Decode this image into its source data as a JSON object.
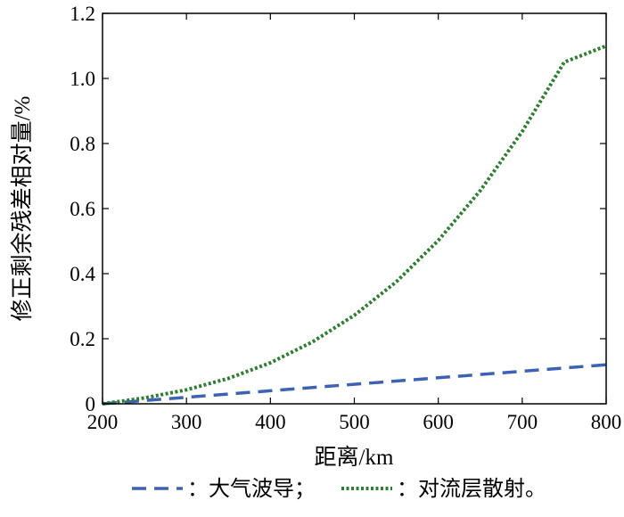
{
  "chart_data": {
    "type": "line",
    "xlabel": "距离/km",
    "ylabel": "修正剩余残差相对量/%",
    "xlim": [
      200,
      800
    ],
    "ylim": [
      0,
      1.2
    ],
    "xticks": [
      "200",
      "300",
      "400",
      "500",
      "600",
      "700",
      "800"
    ],
    "yticks": [
      "0",
      "0.2",
      "0.4",
      "0.6",
      "0.8",
      "1.0",
      "1.2"
    ],
    "grid": false,
    "legend_position": "bottom",
    "series": [
      {
        "name": "：大气波导；",
        "style": "dashed",
        "color": "#3d62b4",
        "x": [
          200,
          300,
          400,
          500,
          600,
          700,
          800
        ],
        "y": [
          0.0,
          0.02,
          0.04,
          0.06,
          0.08,
          0.1,
          0.12
        ]
      },
      {
        "name": "：对流层散射。",
        "style": "dotted",
        "color": "#2f7d32",
        "x": [
          200,
          250,
          300,
          350,
          400,
          450,
          500,
          550,
          600,
          650,
          700,
          750,
          800
        ],
        "y": [
          0.0,
          0.018,
          0.043,
          0.078,
          0.126,
          0.19,
          0.272,
          0.375,
          0.502,
          0.655,
          0.837,
          1.05,
          1.1
        ]
      }
    ]
  }
}
